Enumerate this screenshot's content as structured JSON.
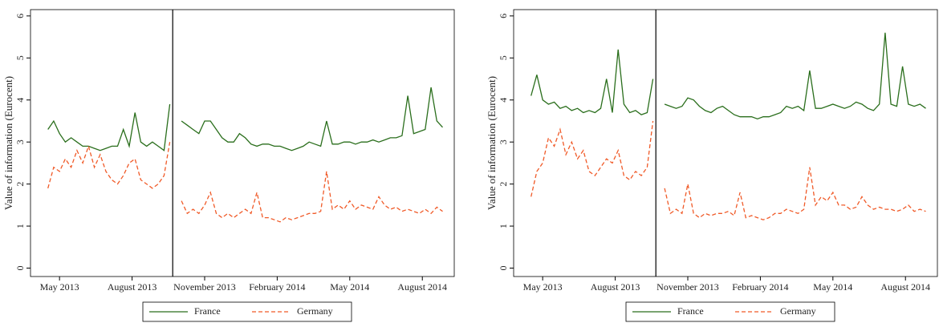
{
  "chart_data": [
    {
      "type": "line",
      "y_label": "Value of information (Eurocent)",
      "x": [
        2013.29,
        2013.31,
        2013.33,
        2013.35,
        2013.37,
        2013.39,
        2013.41,
        2013.43,
        2013.45,
        2013.47,
        2013.49,
        2013.51,
        2013.53,
        2013.55,
        2013.57,
        2013.59,
        2013.61,
        2013.63,
        2013.65,
        2013.67,
        2013.69,
        2013.71,
        2013.73,
        2013.75,
        2013.77,
        2013.79,
        2013.81,
        2013.83,
        2013.85,
        2013.87,
        2013.89,
        2013.91,
        2013.93,
        2013.95,
        2013.97,
        2013.99,
        2014.01,
        2014.03,
        2014.05,
        2014.07,
        2014.09,
        2014.11,
        2014.13,
        2014.15,
        2014.17,
        2014.19,
        2014.21,
        2014.23,
        2014.25,
        2014.27,
        2014.29,
        2014.31,
        2014.33,
        2014.35,
        2014.37,
        2014.39,
        2014.41,
        2014.43,
        2014.45,
        2014.47,
        2014.49,
        2014.51,
        2014.53,
        2014.55,
        2014.57,
        2014.59,
        2014.61,
        2014.63,
        2014.65
      ],
      "series": [
        {
          "name": "France",
          "color": "#2a6e1c",
          "dashed": false,
          "values": [
            3.3,
            3.5,
            3.2,
            3.0,
            3.1,
            3.0,
            2.9,
            2.9,
            2.85,
            2.8,
            2.85,
            2.9,
            2.9,
            3.3,
            2.9,
            3.7,
            3.0,
            2.9,
            3.0,
            2.9,
            2.8,
            3.9,
            null,
            3.5,
            3.4,
            3.3,
            3.2,
            3.5,
            3.5,
            3.3,
            3.1,
            3.0,
            3.0,
            3.2,
            3.1,
            2.95,
            2.9,
            2.95,
            2.95,
            2.9,
            2.9,
            2.85,
            2.8,
            2.85,
            2.9,
            3.0,
            2.95,
            2.9,
            3.5,
            2.95,
            2.95,
            3.0,
            3.0,
            2.95,
            3.0,
            3.0,
            3.05,
            3.0,
            3.05,
            3.1,
            3.1,
            3.15,
            4.1,
            3.2,
            3.25,
            3.3,
            4.3,
            3.5,
            3.35
          ]
        },
        {
          "name": "Germany",
          "color": "#f05a28",
          "dashed": true,
          "values": [
            1.9,
            2.4,
            2.3,
            2.6,
            2.4,
            2.8,
            2.5,
            2.9,
            2.4,
            2.7,
            2.3,
            2.1,
            2.0,
            2.2,
            2.5,
            2.6,
            2.1,
            2.0,
            1.9,
            2.0,
            2.2,
            3.0,
            null,
            1.6,
            1.3,
            1.4,
            1.3,
            1.5,
            1.8,
            1.3,
            1.2,
            1.3,
            1.2,
            1.3,
            1.4,
            1.3,
            1.8,
            1.2,
            1.2,
            1.15,
            1.1,
            1.2,
            1.15,
            1.2,
            1.25,
            1.3,
            1.3,
            1.35,
            2.3,
            1.4,
            1.5,
            1.4,
            1.6,
            1.4,
            1.5,
            1.45,
            1.4,
            1.7,
            1.5,
            1.4,
            1.45,
            1.35,
            1.4,
            1.35,
            1.3,
            1.4,
            1.3,
            1.45,
            1.35
          ]
        }
      ],
      "vline": 2013.72,
      "xlim": [
        2013.23,
        2014.69
      ],
      "xticks": [
        {
          "value": 2013.33,
          "label": "May 2013"
        },
        {
          "value": 2013.58,
          "label": "August 2013"
        },
        {
          "value": 2013.83,
          "label": "November 2013"
        },
        {
          "value": 2014.08,
          "label": "February 2014"
        },
        {
          "value": 2014.33,
          "label": "May 2014"
        },
        {
          "value": 2014.58,
          "label": "August 2014"
        }
      ],
      "ylim": [
        -0.2,
        6.15
      ],
      "yticks": [
        0,
        1,
        2,
        3,
        4,
        5,
        6
      ],
      "grid": false
    },
    {
      "type": "line",
      "y_label": "Value of information (Eurocent)",
      "x": [
        2013.29,
        2013.31,
        2013.33,
        2013.35,
        2013.37,
        2013.39,
        2013.41,
        2013.43,
        2013.45,
        2013.47,
        2013.49,
        2013.51,
        2013.53,
        2013.55,
        2013.57,
        2013.59,
        2013.61,
        2013.63,
        2013.65,
        2013.67,
        2013.69,
        2013.71,
        2013.73,
        2013.75,
        2013.77,
        2013.79,
        2013.81,
        2013.83,
        2013.85,
        2013.87,
        2013.89,
        2013.91,
        2013.93,
        2013.95,
        2013.97,
        2013.99,
        2014.01,
        2014.03,
        2014.05,
        2014.07,
        2014.09,
        2014.11,
        2014.13,
        2014.15,
        2014.17,
        2014.19,
        2014.21,
        2014.23,
        2014.25,
        2014.27,
        2014.29,
        2014.31,
        2014.33,
        2014.35,
        2014.37,
        2014.39,
        2014.41,
        2014.43,
        2014.45,
        2014.47,
        2014.49,
        2014.51,
        2014.53,
        2014.55,
        2014.57,
        2014.59,
        2014.61,
        2014.63,
        2014.65
      ],
      "series": [
        {
          "name": "France",
          "color": "#2a6e1c",
          "dashed": false,
          "values": [
            4.1,
            4.6,
            4.0,
            3.9,
            3.95,
            3.8,
            3.85,
            3.75,
            3.8,
            3.7,
            3.75,
            3.7,
            3.8,
            4.5,
            3.7,
            5.2,
            3.9,
            3.7,
            3.75,
            3.65,
            3.7,
            4.5,
            null,
            3.9,
            3.85,
            3.8,
            3.85,
            4.05,
            4.0,
            3.85,
            3.75,
            3.7,
            3.8,
            3.85,
            3.75,
            3.65,
            3.6,
            3.6,
            3.6,
            3.55,
            3.6,
            3.6,
            3.65,
            3.7,
            3.85,
            3.8,
            3.85,
            3.75,
            4.7,
            3.8,
            3.8,
            3.85,
            3.9,
            3.85,
            3.8,
            3.85,
            3.95,
            3.9,
            3.8,
            3.75,
            3.9,
            5.6,
            3.9,
            3.85,
            4.8,
            3.9,
            3.85,
            3.9,
            3.8
          ]
        },
        {
          "name": "Germany",
          "color": "#f05a28",
          "dashed": true,
          "values": [
            1.7,
            2.3,
            2.5,
            3.1,
            2.9,
            3.3,
            2.7,
            3.0,
            2.6,
            2.8,
            2.3,
            2.2,
            2.4,
            2.6,
            2.5,
            2.8,
            2.2,
            2.1,
            2.3,
            2.2,
            2.4,
            3.5,
            null,
            1.9,
            1.3,
            1.4,
            1.3,
            2.0,
            1.3,
            1.2,
            1.3,
            1.25,
            1.3,
            1.3,
            1.35,
            1.25,
            1.8,
            1.2,
            1.25,
            1.2,
            1.15,
            1.2,
            1.3,
            1.3,
            1.4,
            1.35,
            1.3,
            1.4,
            2.4,
            1.5,
            1.7,
            1.6,
            1.8,
            1.5,
            1.5,
            1.4,
            1.45,
            1.7,
            1.5,
            1.4,
            1.45,
            1.4,
            1.4,
            1.35,
            1.4,
            1.5,
            1.35,
            1.4,
            1.35
          ]
        }
      ],
      "vline": 2013.72,
      "xlim": [
        2013.23,
        2014.69
      ],
      "xticks": [
        {
          "value": 2013.33,
          "label": "May 2013"
        },
        {
          "value": 2013.58,
          "label": "August 2013"
        },
        {
          "value": 2013.83,
          "label": "November 2013"
        },
        {
          "value": 2014.08,
          "label": "February 2014"
        },
        {
          "value": 2014.33,
          "label": "May 2014"
        },
        {
          "value": 2014.58,
          "label": "August 2014"
        }
      ],
      "ylim": [
        -0.2,
        6.15
      ],
      "yticks": [
        0,
        1,
        2,
        3,
        4,
        5,
        6
      ],
      "grid": false
    }
  ]
}
